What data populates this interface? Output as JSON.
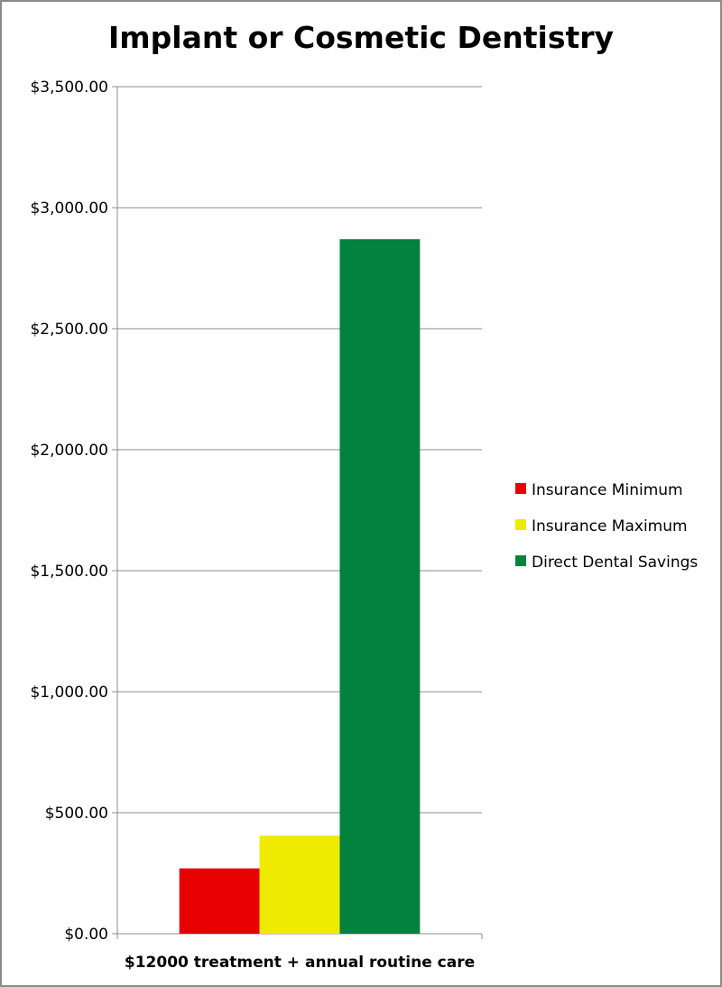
{
  "chart_data": {
    "type": "bar",
    "title": "Implant or Cosmetic Dentistry",
    "categories": [
      "$12000 treatment + annual routine care"
    ],
    "series": [
      {
        "name": "Insurance Minimum",
        "values": [
          270
        ],
        "color": "#e60000"
      },
      {
        "name": "Insurance Maximum",
        "values": [
          405
        ],
        "color": "#eeea00"
      },
      {
        "name": "Direct Dental Savings",
        "values": [
          2870
        ],
        "color": "#02823c"
      }
    ],
    "ylim": [
      0,
      3500
    ],
    "yticks": [
      0,
      500,
      1000,
      1500,
      2000,
      2500,
      3000,
      3500
    ],
    "ytick_labels": [
      "$0.00",
      "$500.00",
      "$1,000.00",
      "$1,500.00",
      "$2,000.00",
      "$2,500.00",
      "$3,000.00",
      "$3,500.00"
    ],
    "grid": true,
    "gridline_color": "#8c8c8c",
    "legend_position": "right"
  }
}
